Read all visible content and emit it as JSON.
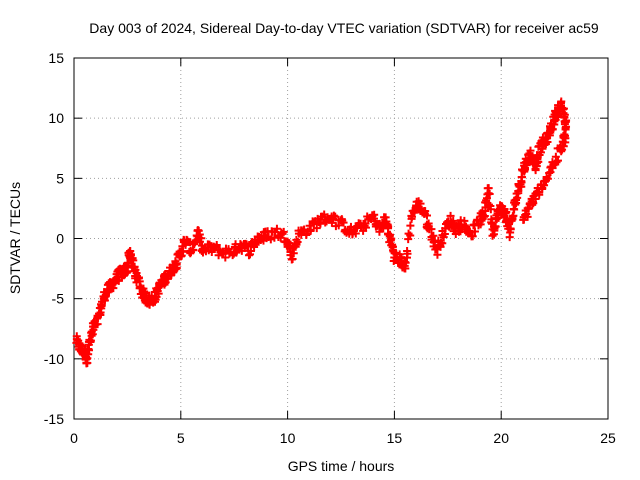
{
  "chart_data": {
    "type": "scatter",
    "title": "Day 003 of 2024, Sidereal Day-to-day VTEC variation (SDTVAR) for receiver ac59",
    "xlabel": "GPS time / hours",
    "ylabel": "SDTVAR / TECUs",
    "xlim": [
      0,
      25
    ],
    "ylim": [
      -15,
      15
    ],
    "x_ticks": [
      0,
      5,
      10,
      15,
      20,
      25
    ],
    "y_ticks": [
      -15,
      -10,
      -5,
      0,
      5,
      10,
      15
    ],
    "x_tick_labels": [
      "0",
      "5",
      "10",
      "15",
      "20",
      "25"
    ],
    "y_tick_labels": [
      "-15",
      "-10",
      "-5",
      "0",
      "5",
      "10",
      "15"
    ],
    "grid": true,
    "marker": "+",
    "series": [
      {
        "name": "SDTVAR",
        "color": "#ff0000",
        "trace": [
          [
            0.1,
            -8.5
          ],
          [
            0.3,
            -9.2
          ],
          [
            0.5,
            -9.5
          ],
          [
            0.6,
            -10.0
          ],
          [
            0.7,
            -9.0
          ],
          [
            0.9,
            -7.5
          ],
          [
            1.1,
            -6.8
          ],
          [
            1.3,
            -5.5
          ],
          [
            1.5,
            -4.5
          ],
          [
            1.7,
            -4.0
          ],
          [
            1.9,
            -3.5
          ],
          [
            2.1,
            -3.0
          ],
          [
            2.3,
            -2.8
          ],
          [
            2.5,
            -2.5
          ],
          [
            2.6,
            -1.0
          ],
          [
            2.8,
            -2.5
          ],
          [
            3.0,
            -3.5
          ],
          [
            3.2,
            -4.5
          ],
          [
            3.4,
            -5.0
          ],
          [
            3.6,
            -5.2
          ],
          [
            3.8,
            -4.8
          ],
          [
            4.0,
            -4.0
          ],
          [
            4.2,
            -3.5
          ],
          [
            4.4,
            -3.0
          ],
          [
            4.6,
            -2.5
          ],
          [
            4.8,
            -2.0
          ],
          [
            5.0,
            -1.2
          ],
          [
            5.2,
            -0.2
          ],
          [
            5.5,
            -1.0
          ],
          [
            5.8,
            0.5
          ],
          [
            6.0,
            -1.0
          ],
          [
            6.5,
            -0.8
          ],
          [
            7.0,
            -1.2
          ],
          [
            7.5,
            -1.0
          ],
          [
            7.8,
            -0.5
          ],
          [
            8.2,
            -1.0
          ],
          [
            8.6,
            0.0
          ],
          [
            9.0,
            0.2
          ],
          [
            9.5,
            0.5
          ],
          [
            10.0,
            0.0
          ],
          [
            10.2,
            -1.5
          ],
          [
            10.5,
            0.3
          ],
          [
            11.0,
            0.8
          ],
          [
            11.5,
            1.5
          ],
          [
            12.0,
            1.8
          ],
          [
            12.5,
            1.2
          ],
          [
            13.0,
            0.5
          ],
          [
            13.5,
            1.0
          ],
          [
            14.0,
            1.8
          ],
          [
            14.3,
            0.8
          ],
          [
            14.6,
            1.5
          ],
          [
            14.8,
            0.0
          ],
          [
            15.0,
            -1.5
          ],
          [
            15.3,
            -1.8
          ],
          [
            15.5,
            -2.5
          ],
          [
            15.8,
            2.0
          ],
          [
            16.1,
            2.8
          ],
          [
            16.4,
            2.2
          ],
          [
            16.7,
            0.5
          ],
          [
            17.0,
            -1.0
          ],
          [
            17.3,
            0.5
          ],
          [
            17.6,
            1.5
          ],
          [
            17.9,
            0.8
          ],
          [
            18.2,
            1.2
          ],
          [
            18.6,
            0.5
          ],
          [
            19.0,
            1.5
          ],
          [
            19.2,
            2.0
          ],
          [
            19.4,
            4.2
          ],
          [
            19.6,
            0.5
          ],
          [
            19.8,
            2.0
          ],
          [
            20.0,
            2.5
          ],
          [
            20.2,
            2.0
          ],
          [
            20.4,
            0.5
          ],
          [
            20.6,
            2.5
          ],
          [
            20.8,
            4.0
          ],
          [
            21.0,
            5.5
          ],
          [
            21.2,
            6.5
          ],
          [
            21.4,
            7.0
          ],
          [
            21.6,
            6.0
          ],
          [
            21.8,
            7.5
          ],
          [
            22.0,
            8.0
          ],
          [
            22.2,
            8.5
          ],
          [
            22.4,
            9.5
          ],
          [
            22.6,
            10.5
          ],
          [
            22.8,
            11.0
          ],
          [
            23.0,
            10.0
          ],
          [
            23.0,
            8.5
          ],
          [
            22.8,
            7.5
          ],
          [
            22.4,
            6.0
          ],
          [
            22.0,
            4.5
          ],
          [
            21.6,
            3.5
          ],
          [
            21.3,
            2.5
          ],
          [
            21.0,
            1.5
          ]
        ]
      }
    ]
  }
}
